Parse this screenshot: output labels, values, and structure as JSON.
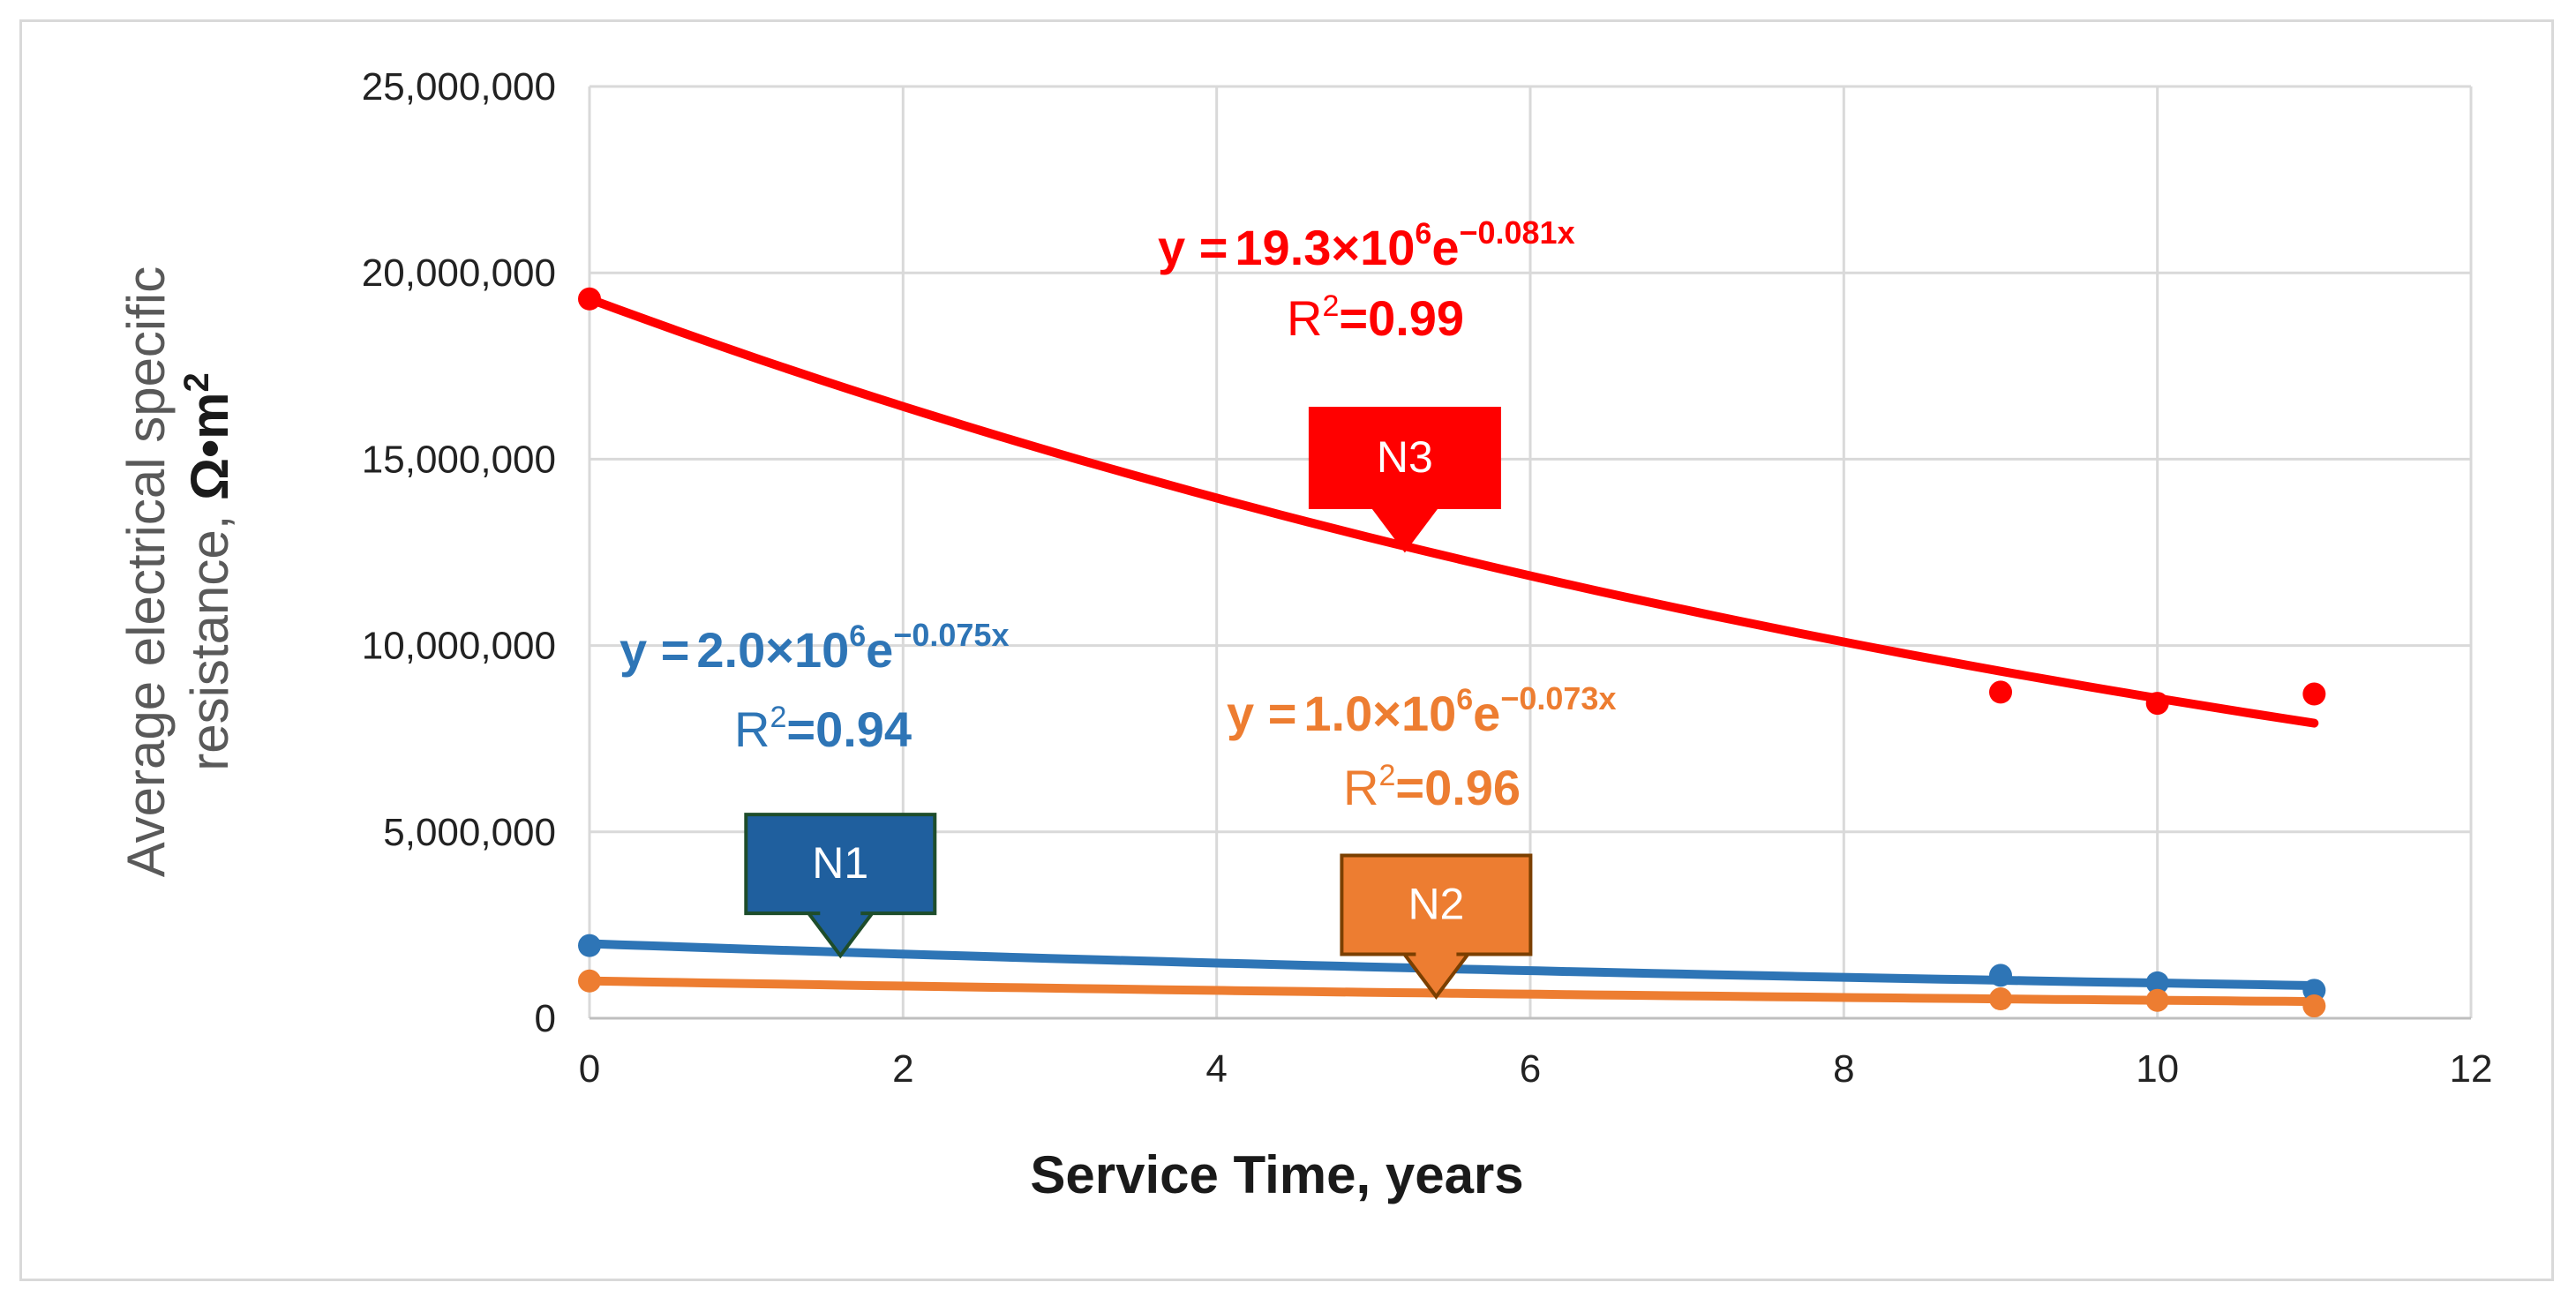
{
  "chart_data": {
    "type": "scatter",
    "title": "",
    "xlabel": "Service Time, years",
    "ylabel_line1": "Average electrical specific",
    "ylabel_line2": "resistance, ",
    "ylabel_unit": "Ω•m",
    "ylabel_unit_sup": "2",
    "xlim": [
      0,
      12
    ],
    "ylim": [
      0,
      25000000
    ],
    "x_ticks": [
      0,
      2,
      4,
      6,
      8,
      10,
      12
    ],
    "x_tick_labels": [
      "0",
      "2",
      "4",
      "6",
      "8",
      "10",
      "12"
    ],
    "y_ticks": [
      0,
      5000000,
      10000000,
      15000000,
      20000000,
      25000000
    ],
    "y_tick_labels": [
      "0",
      "5,000,000",
      "10,000,000",
      "15,000,000",
      "20,000,000",
      "25,000,000"
    ],
    "grid": true,
    "series": [
      {
        "name": "N1",
        "color": "#2e75b6",
        "x": [
          0,
          9,
          10,
          11
        ],
        "y": [
          1950000,
          1150000,
          950000,
          750000
        ],
        "trend": {
          "a": 2000000,
          "b": -0.075,
          "x_range": [
            0,
            11
          ]
        },
        "equation": {
          "y_eq": "y =",
          "coef": "2.0×10",
          "exp6": "6",
          "e": "e",
          "exp": "−0.075x",
          "r2_label": "R",
          "r2_sup": "2",
          "r2_value": "=0.94"
        },
        "callout": {
          "label": "N1",
          "x": 1.6,
          "fill": "#1f5f9e",
          "stroke": "#1e4d2b"
        }
      },
      {
        "name": "N2",
        "color": "#ed7d31",
        "x": [
          0,
          9,
          10,
          11
        ],
        "y": [
          1000000,
          520000,
          480000,
          330000
        ],
        "trend": {
          "a": 1000000,
          "b": -0.073,
          "x_range": [
            0,
            11
          ]
        },
        "equation": {
          "y_eq": "y =",
          "coef": "1.0×10",
          "exp6": "6",
          "e": "e",
          "exp": "−0.073x",
          "r2_label": "R",
          "r2_sup": "2",
          "r2_value": "=0.96"
        },
        "callout": {
          "label": "N2",
          "x": 5.4,
          "fill": "#ed7d31",
          "stroke": "#7b3f00"
        }
      },
      {
        "name": "N3",
        "color": "#ff0000",
        "x": [
          0,
          9,
          10,
          11
        ],
        "y": [
          19300000,
          8750000,
          8450000,
          8700000
        ],
        "trend": {
          "a": 19300000,
          "b": -0.081,
          "x_range": [
            0,
            11
          ]
        },
        "equation": {
          "y_eq": "y =",
          "coef": "19.3×10",
          "exp6": "6",
          "e": "e",
          "exp": "−0.081x",
          "r2_label": "R",
          "r2_sup": "2",
          "r2_value": "=0.99"
        },
        "callout": {
          "label": "N3",
          "x": 5.2,
          "fill": "#ff0000",
          "stroke": "#ff0000"
        }
      }
    ]
  }
}
